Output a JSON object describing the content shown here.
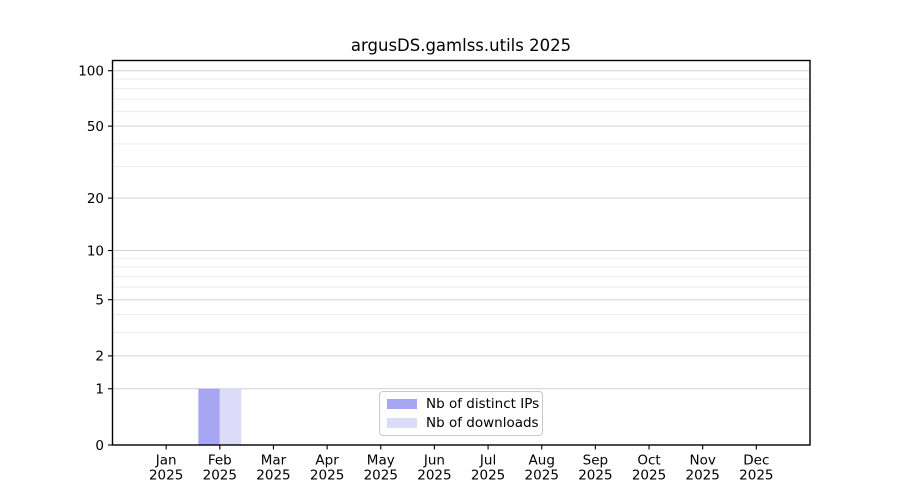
{
  "figure": {
    "title": "argusDS.gamlss.utils 2025",
    "background": "#ffffff"
  },
  "chart_data": {
    "type": "bar",
    "title": "argusDS.gamlss.utils 2025",
    "x_axis": {
      "months": [
        "Jan",
        "Feb",
        "Mar",
        "Apr",
        "May",
        "Jun",
        "Jul",
        "Aug",
        "Sep",
        "Oct",
        "Nov",
        "Dec"
      ],
      "year": "2025"
    },
    "y_axis": {
      "scale": "log1p",
      "tick_values": [
        0,
        1,
        2,
        5,
        10,
        20,
        50,
        100
      ],
      "minor_grid_values": [
        3,
        4,
        6,
        7,
        8,
        9,
        30,
        40,
        60,
        70,
        80,
        90
      ],
      "range": [
        0,
        115
      ],
      "grid": true
    },
    "series": [
      {
        "name": "Nb of distinct IPs",
        "color": "#a6a6f2",
        "values": [
          0,
          1,
          0,
          0,
          0,
          0,
          0,
          0,
          0,
          0,
          0,
          0
        ]
      },
      {
        "name": "Nb of downloads",
        "color": "#dcdcf8",
        "values": [
          0,
          1,
          0,
          0,
          0,
          0,
          0,
          0,
          0,
          0,
          0,
          0
        ]
      }
    ],
    "legend": {
      "entries": [
        "Nb of distinct IPs",
        "Nb of downloads"
      ],
      "position": "bottom-center"
    },
    "bar_group_width_fraction": 0.8
  },
  "colors": {
    "axis": "#000000",
    "grid_major": "#d0d0d0",
    "grid_minor": "#ededed",
    "legend_border": "#c9c9c9",
    "text": "#000000"
  }
}
